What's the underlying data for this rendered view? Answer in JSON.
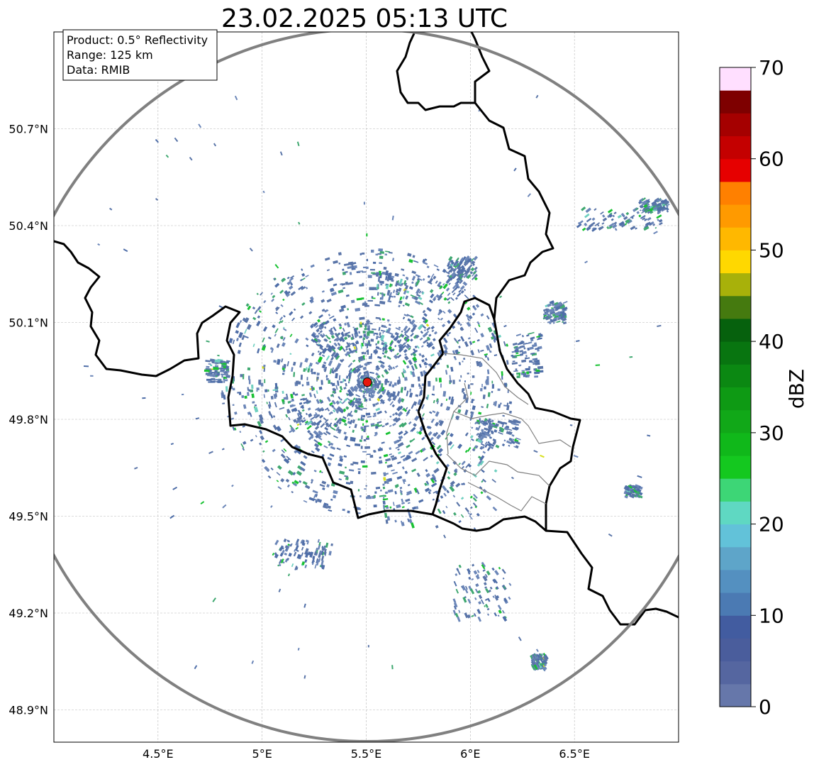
{
  "title": "23.02.2025 05:13 UTC",
  "info_box": {
    "product": "Product: 0.5° Reflectivity",
    "range": "Range: 125 km",
    "data_source": "Data: RMIB"
  },
  "map": {
    "lon_range": [
      4.0,
      7.0
    ],
    "lat_range": [
      48.8,
      51.0
    ],
    "lon_ticks": [
      {
        "value": 4.5,
        "label": "4.5°E"
      },
      {
        "value": 5.0,
        "label": "5°E"
      },
      {
        "value": 5.5,
        "label": "5.5°E"
      },
      {
        "value": 6.0,
        "label": "6°E"
      },
      {
        "value": 6.5,
        "label": "6.5°E"
      }
    ],
    "lat_ticks": [
      {
        "value": 50.7,
        "label": "50.7°N"
      },
      {
        "value": 50.4,
        "label": "50.4°N"
      },
      {
        "value": 50.1,
        "label": "50.1°N"
      },
      {
        "value": 49.8,
        "label": "49.8°N"
      },
      {
        "value": 49.5,
        "label": "49.5°N"
      },
      {
        "value": 49.2,
        "label": "49.2°N"
      },
      {
        "value": 48.9,
        "label": "48.9°N"
      }
    ],
    "radar_site": {
      "lon": 5.505,
      "lat": 49.915,
      "color": "#e8180e"
    },
    "range_ring_km": 125,
    "range_ring_color": "#808080",
    "border_color": "#000000",
    "subregion_border_color": "#808080",
    "grid": true
  },
  "colorbar": {
    "label": "dBZ",
    "min": 0,
    "max": 70,
    "step": 2.5,
    "ticks": [
      {
        "value": 0,
        "label": "0"
      },
      {
        "value": 10,
        "label": "10"
      },
      {
        "value": 20,
        "label": "20"
      },
      {
        "value": 30,
        "label": "30"
      },
      {
        "value": 40,
        "label": "40"
      },
      {
        "value": 50,
        "label": "50"
      },
      {
        "value": 60,
        "label": "60"
      },
      {
        "value": 70,
        "label": "70"
      }
    ],
    "colors": [
      "#6677aa",
      "#5566a0",
      "#4a5d9c",
      "#425ca0",
      "#4b7ab3",
      "#5490c0",
      "#5ea5c9",
      "#62c2d9",
      "#5fd8c2",
      "#3dd676",
      "#14c81f",
      "#10b81a",
      "#11a818",
      "#0e9a14",
      "#0b8812",
      "#087510",
      "#06610d",
      "#457a0f",
      "#a8b10a",
      "#ffd800",
      "#ffb800",
      "#ff9a00",
      "#ff8000",
      "#e60000",
      "#c40000",
      "#a50000",
      "#7e0000",
      "#ffdfff",
      "#ffb3ff",
      "#ff6cff",
      "#ed33ed"
    ]
  },
  "echo_colors": [
    "#5a75a8",
    "#4f6ea8",
    "#6b86b8",
    "#3fa870",
    "#19c233",
    "#6fd0c0",
    "#d8e020"
  ]
}
